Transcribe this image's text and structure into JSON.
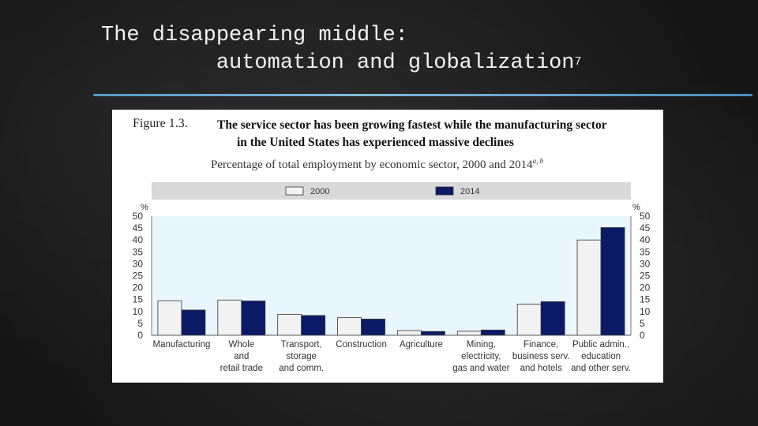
{
  "slide": {
    "title_line1": "The disappearing middle:",
    "title_line2": "automation and globalization",
    "title_sup": "7"
  },
  "figure": {
    "number": "Figure 1.3.",
    "title_line1": "The service sector has been growing fastest while the manufacturing sector",
    "title_line2": "in the United States has experienced massive declines",
    "subtitle": "Percentage of total employment by economic sector, 2000 and 2014",
    "subtitle_sup": "a, b"
  },
  "chart_data": {
    "type": "bar",
    "categories": [
      [
        "Manufacturing"
      ],
      [
        "Whole",
        "and",
        "retail trade"
      ],
      [
        "Transport,",
        "storage",
        "and comm."
      ],
      [
        "Construction"
      ],
      [
        "Agriculture"
      ],
      [
        "Mining,",
        "electricity,",
        "gas and water"
      ],
      [
        "Finance,",
        "business serv.",
        "and hotels"
      ],
      [
        "Public admin.,",
        "education",
        "and other serv."
      ]
    ],
    "series": [
      {
        "name": "2000",
        "color": "#f2f2f2",
        "values": [
          14.5,
          14.8,
          8.8,
          7.4,
          2.0,
          1.7,
          13.1,
          40.0
        ]
      },
      {
        "name": "2014",
        "color": "#0b1a66",
        "values": [
          10.6,
          14.4,
          8.3,
          6.8,
          1.6,
          2.2,
          14.1,
          45.2
        ]
      }
    ],
    "ylabel_left": "%",
    "ylabel_right": "%",
    "ylim": [
      0,
      50
    ],
    "yticks": [
      0,
      5,
      10,
      15,
      20,
      25,
      30,
      35,
      40,
      45,
      50
    ],
    "legend_position": "top",
    "colors": {
      "plot_background": "#eaf6fd",
      "legend_band": "#d9d9d9"
    }
  }
}
